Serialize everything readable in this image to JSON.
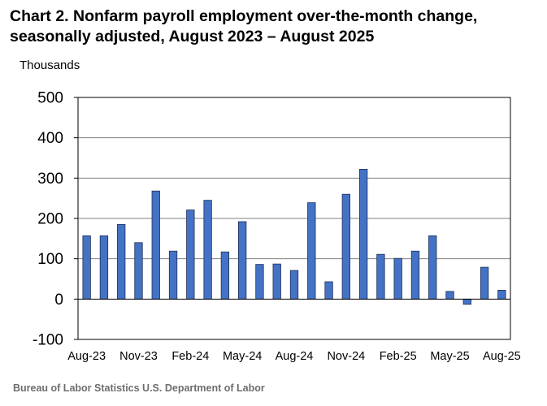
{
  "title_line1": "Chart 2. Nonfarm payroll employment over-the-month change,",
  "title_line2": "seasonally adjusted, August 2023 – August 2025",
  "source": "Bureau of Labor Statistics U.S. Department of Labor",
  "colors": {
    "bar_fill": "#4472C4",
    "bar_stroke": "#1F2F5A",
    "grid": "#808080",
    "axis": "#000000"
  },
  "chart_data": {
    "type": "bar",
    "title": "Chart 2. Nonfarm payroll employment over-the-month change, seasonally adjusted, August 2023 – August 2025",
    "ylabel": "Thousands",
    "xlabel": "",
    "ylim": [
      -100,
      500
    ],
    "yticks": [
      -100,
      0,
      100,
      200,
      300,
      400,
      500
    ],
    "grid": true,
    "categories": [
      "Aug-23",
      "Sep-23",
      "Oct-23",
      "Nov-23",
      "Dec-23",
      "Jan-24",
      "Feb-24",
      "Mar-24",
      "Apr-24",
      "May-24",
      "Jun-24",
      "Jul-24",
      "Aug-24",
      "Sep-24",
      "Oct-24",
      "Nov-24",
      "Dec-24",
      "Jan-25",
      "Feb-25",
      "Mar-25",
      "Apr-25",
      "May-25",
      "Jun-25",
      "Jul-25",
      "Aug-25"
    ],
    "x_tick_labels": [
      "Aug-23",
      "Nov-23",
      "Feb-24",
      "May-24",
      "Aug-24",
      "Nov-24",
      "Feb-25",
      "May-25",
      "Aug-25"
    ],
    "values": [
      157,
      157,
      185,
      140,
      268,
      119,
      221,
      245,
      117,
      192,
      86,
      87,
      71,
      239,
      43,
      260,
      322,
      111,
      101,
      119,
      157,
      19,
      -13,
      79,
      22
    ]
  }
}
